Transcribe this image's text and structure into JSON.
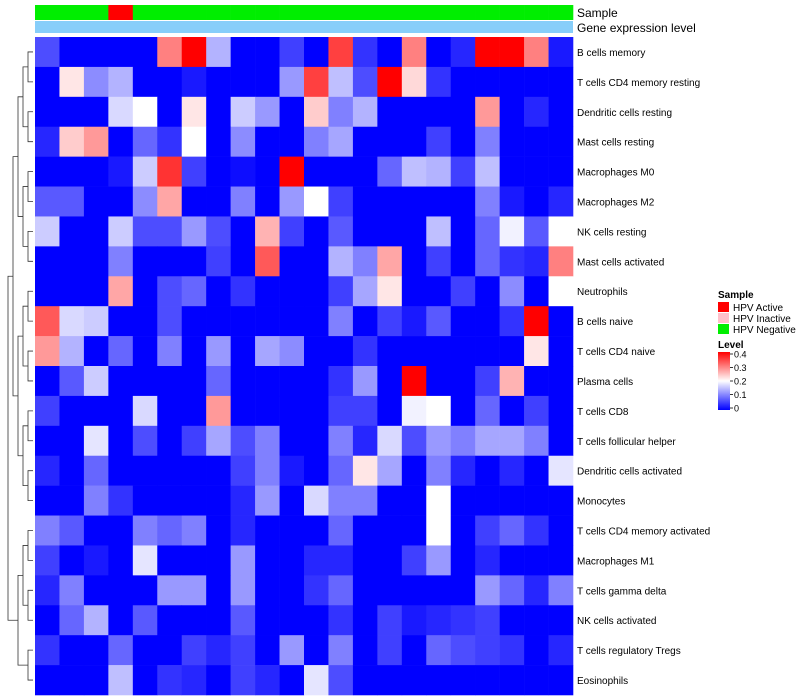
{
  "chart_data": {
    "type": "heatmap",
    "title": "",
    "annotation_labels": [
      "Sample",
      "Gene expression level"
    ],
    "sample_groups": [
      "Negative",
      "Negative",
      "Negative",
      "Active",
      "Negative",
      "Negative",
      "Negative",
      "Negative",
      "Negative",
      "Negative",
      "Negative",
      "Negative",
      "Negative",
      "Negative",
      "Negative",
      "Negative",
      "Negative",
      "Negative",
      "Negative",
      "Negative",
      "Negative",
      "Negative"
    ],
    "rows": [
      "B cells memory",
      "T cells CD4 memory resting",
      "Dendritic cells resting",
      "Mast cells resting",
      "Macrophages M0",
      "Macrophages M2",
      "NK cells resting",
      "Mast cells activated",
      "Neutrophils",
      "B cells naive",
      "T cells CD4 naive",
      "Plasma cells",
      "T cells CD8",
      "T cells follicular helper",
      "Dendritic cells activated",
      "Monocytes",
      "T cells CD4 memory activated",
      "Macrophages M1",
      "T cells gamma delta",
      "NK cells activated",
      "T cells regulatory  Tregs",
      "Eosinophils"
    ],
    "values": [
      [
        0.06,
        0,
        0,
        0,
        0,
        0.3,
        0.4,
        0.14,
        0,
        0,
        0.05,
        0,
        0.35,
        0.04,
        0,
        0.3,
        0,
        0.03,
        0.4,
        0.4,
        0.3,
        0.02
      ],
      [
        0,
        0.22,
        0.11,
        0.14,
        0,
        0,
        0.02,
        0,
        0,
        0,
        0.12,
        0.35,
        0.15,
        0.06,
        0.4,
        0.23,
        0.04,
        0,
        0,
        0,
        0,
        0
      ],
      [
        0,
        0,
        0,
        0.17,
        0.2,
        0,
        0.22,
        0,
        0.16,
        0.12,
        0,
        0.24,
        0.1,
        0.14,
        0,
        0,
        0,
        0,
        0.28,
        0,
        0.03,
        0
      ],
      [
        0.03,
        0.24,
        0.28,
        0,
        0.08,
        0.04,
        0.2,
        0,
        0.11,
        0,
        0,
        0.1,
        0.13,
        0,
        0,
        0,
        0.05,
        0,
        0.1,
        0,
        0,
        0
      ],
      [
        0,
        0,
        0,
        0.02,
        0.16,
        0.36,
        0.05,
        0,
        0.01,
        0,
        0.4,
        0,
        0,
        0,
        0.08,
        0.15,
        0.14,
        0.05,
        0.15,
        0,
        0,
        0
      ],
      [
        0.07,
        0.07,
        0,
        0,
        0.11,
        0.27,
        0,
        0,
        0.1,
        0,
        0.12,
        0.2,
        0.05,
        0,
        0,
        0,
        0,
        0,
        0.1,
        0.02,
        0,
        0.03
      ],
      [
        0.16,
        0,
        0,
        0.16,
        0.06,
        0.06,
        0.12,
        0.06,
        0,
        0.26,
        0.05,
        0,
        0.07,
        0,
        0,
        0,
        0.15,
        0,
        0.08,
        0.19,
        0.07,
        0.2
      ],
      [
        0,
        0,
        0,
        0.1,
        0,
        0,
        0,
        0.05,
        0,
        0.33,
        0,
        0,
        0.14,
        0.1,
        0.27,
        0,
        0.05,
        0,
        0.08,
        0.04,
        0.03,
        0.3
      ],
      [
        0,
        0,
        0,
        0.27,
        0,
        0.06,
        0.08,
        0,
        0.04,
        0,
        0,
        0,
        0.05,
        0.13,
        0.22,
        0,
        0,
        0.05,
        0,
        0.11,
        0,
        0.2
      ],
      [
        0.33,
        0.17,
        0.16,
        0,
        0,
        0.06,
        0,
        0,
        0,
        0,
        0,
        0,
        0.1,
        0,
        0.05,
        0.02,
        0.07,
        0,
        0,
        0.04,
        0.4,
        0
      ],
      [
        0.28,
        0.14,
        0,
        0.08,
        0,
        0.1,
        0,
        0.12,
        0,
        0.13,
        0.11,
        0,
        0,
        0.04,
        0,
        0,
        0,
        0,
        0,
        0,
        0.22,
        0
      ],
      [
        0,
        0.07,
        0.16,
        0,
        0,
        0,
        0,
        0.08,
        0,
        0,
        0,
        0,
        0.04,
        0.12,
        0,
        0.4,
        0,
        0,
        0.05,
        0.26,
        0,
        0
      ],
      [
        0.05,
        0,
        0,
        0,
        0.17,
        0,
        0,
        0.28,
        0,
        0,
        0,
        0,
        0.05,
        0.05,
        0,
        0.19,
        0.2,
        0,
        0.08,
        0,
        0.05,
        0
      ],
      [
        0,
        0,
        0.18,
        0,
        0.06,
        0,
        0.05,
        0.13,
        0.06,
        0.1,
        0,
        0,
        0.1,
        0.03,
        0.17,
        0.06,
        0.12,
        0.1,
        0.13,
        0.13,
        0.1,
        0
      ],
      [
        0.03,
        0,
        0.08,
        0,
        0,
        0,
        0,
        0,
        0.05,
        0.1,
        0.02,
        0,
        0.08,
        0.22,
        0.13,
        0,
        0.1,
        0.03,
        0,
        0.03,
        0,
        0.18
      ],
      [
        0,
        0,
        0.1,
        0.04,
        0,
        0,
        0,
        0,
        0.03,
        0.12,
        0,
        0.17,
        0.1,
        0.1,
        0,
        0,
        0.2,
        0,
        0,
        0,
        0,
        0
      ],
      [
        0.1,
        0.07,
        0,
        0,
        0.1,
        0.08,
        0.1,
        0,
        0.03,
        0,
        0,
        0,
        0.08,
        0,
        0,
        0,
        0.2,
        0,
        0.05,
        0.08,
        0.04,
        0
      ],
      [
        0.05,
        0,
        0.02,
        0,
        0.18,
        0,
        0,
        0,
        0.12,
        0,
        0,
        0.03,
        0.03,
        0,
        0,
        0.05,
        0.12,
        0,
        0.03,
        0,
        0,
        0
      ],
      [
        0.03,
        0.1,
        0,
        0,
        0,
        0.12,
        0.12,
        0,
        0.12,
        0,
        0,
        0.04,
        0.08,
        0,
        0,
        0,
        0,
        0,
        0.12,
        0.08,
        0.03,
        0.1
      ],
      [
        0,
        0.08,
        0.14,
        0,
        0.07,
        0,
        0,
        0,
        0.07,
        0,
        0,
        0,
        0.04,
        0,
        0.05,
        0.02,
        0.03,
        0.04,
        0.05,
        0,
        0,
        0
      ],
      [
        0.04,
        0,
        0,
        0.08,
        0,
        0,
        0.05,
        0.03,
        0.05,
        0,
        0.12,
        0,
        0.1,
        0,
        0.05,
        0,
        0.08,
        0.06,
        0.05,
        0.04,
        0,
        0.03
      ],
      [
        0,
        0,
        0,
        0.15,
        0,
        0.04,
        0.03,
        0,
        0.05,
        0.03,
        0,
        0.18,
        0.06,
        0,
        0,
        0,
        0,
        0,
        0,
        0,
        0,
        0
      ]
    ],
    "colorbar_range": [
      0,
      0.4
    ],
    "colorbar_ticks": [
      0.4,
      0.3,
      0.2,
      0.1,
      0
    ],
    "colorscale": [
      "#0000ff",
      "#ffffff",
      "#ff0000"
    ],
    "colors": {
      "active": "#ff0000",
      "inactive": "#ffc0cb",
      "negative": "#00ee00",
      "expression_bar": "#87cefa"
    },
    "legend": {
      "sample_title": "Sample",
      "sample_entries": [
        "HPV Active",
        "HPV Inactive",
        "HPV Negative"
      ],
      "level_title": "Level",
      "level_tick_labels": [
        "0.4",
        "0.3",
        "0.2",
        "0.1",
        "0"
      ]
    }
  }
}
